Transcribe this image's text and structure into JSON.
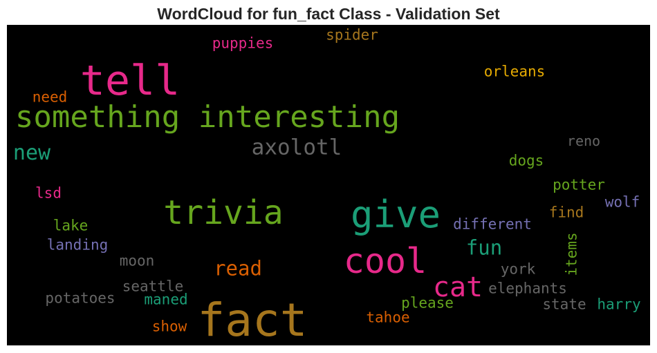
{
  "title": "WordCloud for fun_fact Class - Validation Set",
  "chart_data": {
    "type": "wordcloud",
    "title": "WordCloud for fun_fact Class - Validation Set",
    "words": [
      {
        "text": "fact",
        "color": "#a6761d"
      },
      {
        "text": "tell",
        "color": "#e7298a"
      },
      {
        "text": "something interesting",
        "color": "#66a61e"
      },
      {
        "text": "trivia",
        "color": "#66a61e"
      },
      {
        "text": "give",
        "color": "#1b9e77"
      },
      {
        "text": "cool",
        "color": "#e7298a"
      },
      {
        "text": "cat",
        "color": "#e7298a"
      },
      {
        "text": "axolotl",
        "color": "#666666"
      },
      {
        "text": "new",
        "color": "#1b9e77"
      },
      {
        "text": "fun",
        "color": "#1b9e77"
      },
      {
        "text": "read",
        "color": "#d95f02"
      },
      {
        "text": "puppies",
        "color": "#e7298a"
      },
      {
        "text": "spider",
        "color": "#a6761d"
      },
      {
        "text": "orleans",
        "color": "#e6ab02"
      },
      {
        "text": "need",
        "color": "#d95f02"
      },
      {
        "text": "reno",
        "color": "#666666"
      },
      {
        "text": "dogs",
        "color": "#66a61e"
      },
      {
        "text": "potter",
        "color": "#66a61e"
      },
      {
        "text": "wolf",
        "color": "#7570b3"
      },
      {
        "text": "find",
        "color": "#a6761d"
      },
      {
        "text": "different",
        "color": "#7570b3"
      },
      {
        "text": "lsd",
        "color": "#e7298a"
      },
      {
        "text": "lake",
        "color": "#66a61e"
      },
      {
        "text": "landing",
        "color": "#7570b3"
      },
      {
        "text": "moon",
        "color": "#666666"
      },
      {
        "text": "york",
        "color": "#666666"
      },
      {
        "text": "items",
        "color": "#66a61e"
      },
      {
        "text": "seattle",
        "color": "#666666"
      },
      {
        "text": "elephants",
        "color": "#666666"
      },
      {
        "text": "potatoes",
        "color": "#666666"
      },
      {
        "text": "maned",
        "color": "#1b9e77"
      },
      {
        "text": "please",
        "color": "#66a61e"
      },
      {
        "text": "state",
        "color": "#666666"
      },
      {
        "text": "harry",
        "color": "#1b9e77"
      },
      {
        "text": "show",
        "color": "#d95f02"
      },
      {
        "text": "tahoe",
        "color": "#d95f02"
      }
    ]
  }
}
